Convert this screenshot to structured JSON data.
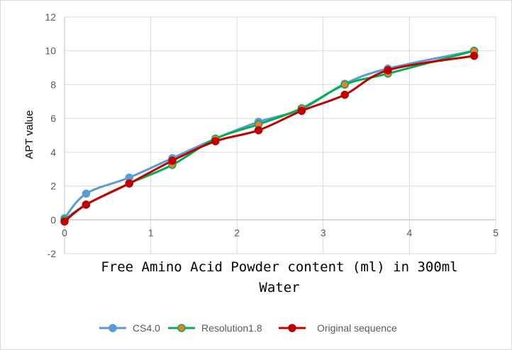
{
  "chart_data": {
    "type": "line",
    "title": "",
    "xlabel_lines": [
      "Free Amino Acid Powder content (ml) in 300ml",
      "Water"
    ],
    "ylabel": "APT  value",
    "xlim": [
      0,
      5
    ],
    "ylim": [
      -2,
      12
    ],
    "x_ticks": [
      0,
      1,
      2,
      3,
      4,
      5
    ],
    "y_ticks": [
      -2,
      0,
      2,
      4,
      6,
      8,
      10,
      12
    ],
    "grid": true,
    "legend_position": "bottom",
    "series": [
      {
        "name": "CS4.0",
        "color": "#5b9bd5",
        "marker_fill": "#5b9bd5",
        "points": [
          [
            0,
            0.1
          ],
          [
            0.25,
            1.55
          ],
          [
            0.75,
            2.5
          ],
          [
            1.25,
            3.65
          ],
          [
            1.75,
            4.8
          ],
          [
            2.25,
            5.8
          ],
          [
            2.75,
            6.55
          ],
          [
            3.25,
            8.05
          ],
          [
            3.75,
            8.95
          ],
          [
            4.75,
            10.0
          ]
        ]
      },
      {
        "name": "Resolution1.8",
        "color": "#00b050",
        "marker_fill": "#ed7d31",
        "points": [
          [
            0,
            0.0
          ],
          [
            0.25,
            0.9
          ],
          [
            0.75,
            2.15
          ],
          [
            1.25,
            3.25
          ],
          [
            1.75,
            4.8
          ],
          [
            2.25,
            5.65
          ],
          [
            2.75,
            6.6
          ],
          [
            3.25,
            8.0
          ],
          [
            3.75,
            8.65
          ],
          [
            4.75,
            10.0
          ]
        ]
      },
      {
        "name": "Original sequence",
        "color": "#c00000",
        "marker_fill": "#c00000",
        "points": [
          [
            0,
            -0.1
          ],
          [
            0.25,
            0.9
          ],
          [
            0.75,
            2.15
          ],
          [
            1.25,
            3.5
          ],
          [
            1.75,
            4.65
          ],
          [
            2.25,
            5.3
          ],
          [
            2.75,
            6.45
          ],
          [
            3.25,
            7.4
          ],
          [
            3.75,
            8.85
          ],
          [
            4.75,
            9.7
          ]
        ]
      }
    ]
  }
}
